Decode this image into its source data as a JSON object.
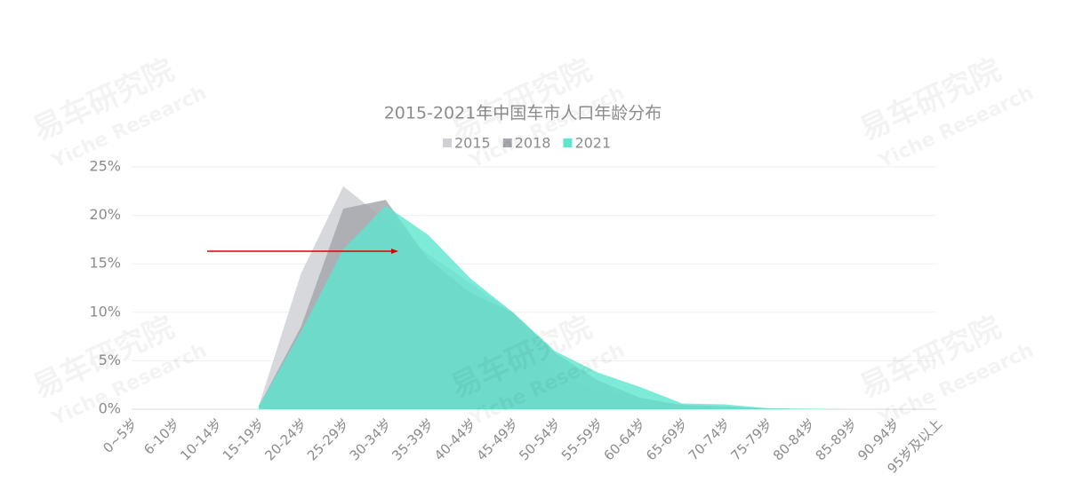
{
  "chart_data": {
    "type": "area",
    "title": "2015-2021年中国车市人口年龄分布",
    "watermark": [
      "易车研究院",
      "Yiche Research"
    ],
    "categories": [
      "0~5岁",
      "6-10岁",
      "10-14岁",
      "15-19岁",
      "20-24岁",
      "25-29岁",
      "30-34岁",
      "35-39岁",
      "40-44岁",
      "45-49岁",
      "50-54岁",
      "55-59岁",
      "60-64岁",
      "65-69岁",
      "70-74岁",
      "75-79岁",
      "80-84岁",
      "85-89岁",
      "90-94岁",
      "95岁及以上"
    ],
    "series": [
      {
        "name": "2015",
        "color": "#cfd1d5",
        "values": [
          null,
          null,
          null,
          0.3,
          14,
          23,
          19.5,
          16,
          13,
          10,
          3.5,
          2,
          1,
          0.5,
          0.3,
          0.1,
          0,
          0,
          0,
          0
        ]
      },
      {
        "name": "2018",
        "color": "#a6a8ad",
        "values": [
          null,
          null,
          null,
          0.3,
          8.5,
          20.7,
          21.6,
          15.5,
          12,
          10,
          5.8,
          3,
          1.2,
          0.4,
          0.3,
          0.1,
          0,
          0,
          0,
          0
        ]
      },
      {
        "name": "2021",
        "color": "#5ee6cf",
        "values": [
          null,
          null,
          null,
          0.3,
          8,
          16.5,
          21,
          18,
          13.5,
          10,
          6,
          3.8,
          2.3,
          0.6,
          0.5,
          0.1,
          0.05,
          0,
          0,
          0
        ]
      }
    ],
    "ylim": [
      0,
      25
    ],
    "yticks": [
      {
        "value": 0,
        "label": "0%"
      },
      {
        "value": 5,
        "label": "5%"
      },
      {
        "value": 10,
        "label": "10%"
      },
      {
        "value": 15,
        "label": "15%"
      },
      {
        "value": 20,
        "label": "20%"
      },
      {
        "value": 25,
        "label": "25%"
      }
    ],
    "grid": true
  }
}
